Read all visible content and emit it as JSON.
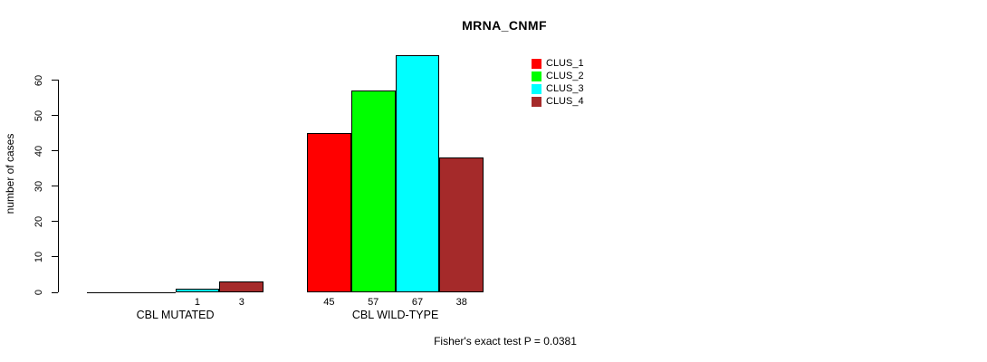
{
  "chart_data": {
    "type": "bar",
    "title": "MRNA_CNMF",
    "ylabel": "number of cases",
    "xlabel": "",
    "categories": [
      "CBL MUTATED",
      "CBL WILD-TYPE"
    ],
    "series": [
      {
        "name": "CLUS_1",
        "color": "#FF0000",
        "values": [
          0,
          45
        ]
      },
      {
        "name": "CLUS_2",
        "color": "#00FF00",
        "values": [
          0,
          57
        ]
      },
      {
        "name": "CLUS_3",
        "color": "#00FFFF",
        "values": [
          1,
          67
        ]
      },
      {
        "name": "CLUS_4",
        "color": "#A52A2A",
        "values": [
          3,
          38
        ]
      }
    ],
    "yticks": [
      0,
      10,
      20,
      30,
      40,
      50,
      60
    ],
    "ylim": [
      0,
      67
    ],
    "grid": false,
    "show_zero_value_labels": false,
    "legend_position": "top-right",
    "annotation": "Fisher's exact test P = 0.0381",
    "axis_color": "#000000",
    "background_color": "#FFFFFF"
  }
}
